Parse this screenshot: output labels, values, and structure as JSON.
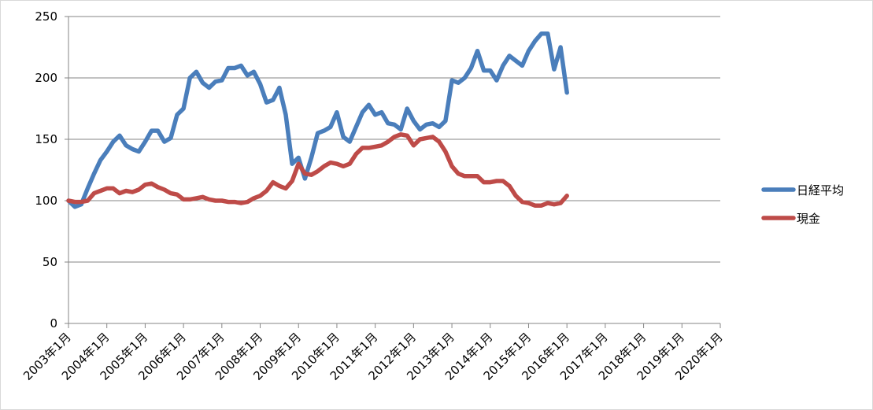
{
  "chart_data": {
    "type": "line",
    "x": [
      "2003-01",
      "2003-03",
      "2003-05",
      "2003-07",
      "2003-09",
      "2003-11",
      "2004-01",
      "2004-03",
      "2004-05",
      "2004-07",
      "2004-09",
      "2004-11",
      "2005-01",
      "2005-03",
      "2005-05",
      "2005-07",
      "2005-09",
      "2005-11",
      "2006-01",
      "2006-03",
      "2006-05",
      "2006-07",
      "2006-09",
      "2006-11",
      "2007-01",
      "2007-03",
      "2007-05",
      "2007-07",
      "2007-09",
      "2007-11",
      "2008-01",
      "2008-03",
      "2008-05",
      "2008-07",
      "2008-09",
      "2008-11",
      "2009-01",
      "2009-03",
      "2009-05",
      "2009-07",
      "2009-09",
      "2009-11",
      "2010-01",
      "2010-03",
      "2010-05",
      "2010-07",
      "2010-09",
      "2010-11",
      "2011-01",
      "2011-03",
      "2011-05",
      "2011-07",
      "2011-09",
      "2011-11",
      "2012-01",
      "2012-03",
      "2012-05",
      "2012-07",
      "2012-09",
      "2012-11",
      "2013-01",
      "2013-03",
      "2013-05",
      "2013-07",
      "2013-09",
      "2013-11",
      "2014-01",
      "2014-03",
      "2014-05",
      "2014-07",
      "2014-09",
      "2014-11",
      "2015-01",
      "2015-03",
      "2015-05",
      "2015-07",
      "2015-09",
      "2015-11",
      "2016-01"
    ],
    "series": [
      {
        "name": "日経平均",
        "color": "#4a7ebb",
        "values": [
          100,
          95,
          97,
          110,
          122,
          133,
          140,
          148,
          153,
          145,
          142,
          140,
          148,
          157,
          157,
          148,
          151,
          170,
          175,
          200,
          205,
          196,
          192,
          197,
          198,
          208,
          208,
          210,
          202,
          205,
          195,
          180,
          182,
          192,
          170,
          130,
          135,
          118,
          135,
          155,
          157,
          160,
          172,
          152,
          148,
          160,
          172,
          178,
          170,
          172,
          163,
          162,
          158,
          175,
          165,
          158,
          162,
          163,
          160,
          165,
          198,
          196,
          200,
          208,
          222,
          206,
          206,
          198,
          210,
          218,
          214,
          210,
          222,
          230,
          236,
          236,
          207,
          225,
          188
        ]
      },
      {
        "name": "現金",
        "color": "#be4b48",
        "values": [
          100,
          99,
          99,
          100,
          106,
          108,
          110,
          110,
          106,
          108,
          107,
          109,
          113,
          114,
          111,
          109,
          106,
          105,
          101,
          101,
          102,
          103,
          101,
          100,
          100,
          99,
          99,
          98,
          99,
          102,
          104,
          108,
          115,
          112,
          110,
          116,
          130,
          122,
          121,
          124,
          128,
          131,
          130,
          128,
          130,
          138,
          143,
          143,
          144,
          145,
          148,
          152,
          154,
          153,
          145,
          150,
          151,
          152,
          148,
          140,
          128,
          122,
          120,
          120,
          120,
          115,
          115,
          116,
          116,
          112,
          104,
          99,
          98,
          96,
          96,
          98,
          97,
          98,
          104
        ]
      }
    ],
    "xlim": [
      "2003-01",
      "2020-01"
    ],
    "xticks": [
      {
        "value": "2003-01",
        "label": "2003年1月"
      },
      {
        "value": "2004-01",
        "label": "2004年1月"
      },
      {
        "value": "2005-01",
        "label": "2005年1月"
      },
      {
        "value": "2006-01",
        "label": "2006年1月"
      },
      {
        "value": "2007-01",
        "label": "2007年1月"
      },
      {
        "value": "2008-01",
        "label": "2008年1月"
      },
      {
        "value": "2009-01",
        "label": "2009年1月"
      },
      {
        "value": "2010-01",
        "label": "2010年1月"
      },
      {
        "value": "2011-01",
        "label": "2011年1月"
      },
      {
        "value": "2012-01",
        "label": "2012年1月"
      },
      {
        "value": "2013-01",
        "label": "2013年1月"
      },
      {
        "value": "2014-01",
        "label": "2014年1月"
      },
      {
        "value": "2015-01",
        "label": "2015年1月"
      },
      {
        "value": "2016-01",
        "label": "2016年1月"
      },
      {
        "value": "2017-01",
        "label": "2017年1月"
      },
      {
        "value": "2018-01",
        "label": "2018年1月"
      },
      {
        "value": "2019-01",
        "label": "2019年1月"
      },
      {
        "value": "2020-01",
        "label": "2020年1月"
      }
    ],
    "ylim": [
      0,
      250
    ],
    "yticks": [
      0,
      50,
      100,
      150,
      200,
      250
    ],
    "grid": true
  }
}
